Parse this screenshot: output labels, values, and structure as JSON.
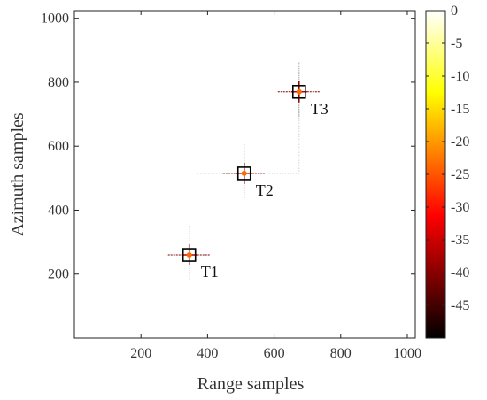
{
  "chart_data": {
    "type": "heatmap",
    "xlabel": "Range samples",
    "ylabel": "Azimuth samples",
    "xlim": [
      0,
      1024
    ],
    "ylim": [
      0,
      1024
    ],
    "xticks": [
      200,
      400,
      600,
      800,
      1000
    ],
    "yticks": [
      200,
      400,
      600,
      800,
      1000
    ],
    "x_tick_labels": [
      "200",
      "400",
      "600",
      "800",
      "1000"
    ],
    "y_tick_labels": [
      "200",
      "400",
      "600",
      "800",
      "1000"
    ],
    "colorbar": {
      "colormap": "hot",
      "range": [
        -50,
        0
      ],
      "ticks": [
        0,
        -5,
        -10,
        -15,
        -20,
        -25,
        -30,
        -35,
        -40,
        -45
      ],
      "tick_labels": [
        "0",
        "-5",
        "-10",
        "-15",
        "-20",
        "-25",
        "-30",
        "-35",
        "-40",
        "-45"
      ]
    },
    "targets": [
      {
        "label": "T1",
        "x": 345,
        "y": 260
      },
      {
        "label": "T2",
        "x": 510,
        "y": 515
      },
      {
        "label": "T3",
        "x": 675,
        "y": 770
      }
    ],
    "grid": false
  }
}
